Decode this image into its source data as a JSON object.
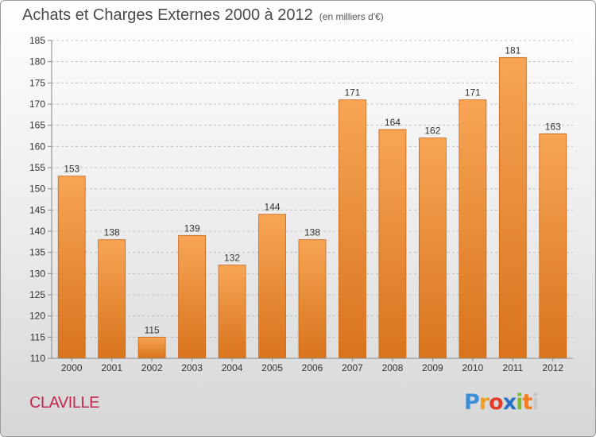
{
  "title": "Achats et Charges Externes 2000 à 2012",
  "unit_note": "(en milliers d'€)",
  "city": "CLAVILLE",
  "logo": {
    "letters": [
      "P",
      "r",
      "o",
      "x",
      "i",
      "t",
      "i"
    ]
  },
  "colors": {
    "bar_top": "#f7a555",
    "bar_bottom": "#d9741c",
    "bar_edge": "#c96515",
    "grid": "#b8b8b8",
    "axis_text": "#333333",
    "city": "#c4264a"
  },
  "chart_data": {
    "type": "bar",
    "categories": [
      "2000",
      "2001",
      "2002",
      "2003",
      "2004",
      "2005",
      "2006",
      "2007",
      "2008",
      "2009",
      "2010",
      "2011",
      "2012"
    ],
    "values": [
      153,
      138,
      115,
      139,
      132,
      144,
      138,
      171,
      164,
      162,
      171,
      181,
      163
    ],
    "ylim": [
      110,
      185
    ],
    "yticks": [
      110,
      115,
      120,
      125,
      130,
      135,
      140,
      145,
      150,
      155,
      160,
      165,
      170,
      175,
      180,
      185
    ],
    "grid": true,
    "legend": "none"
  }
}
